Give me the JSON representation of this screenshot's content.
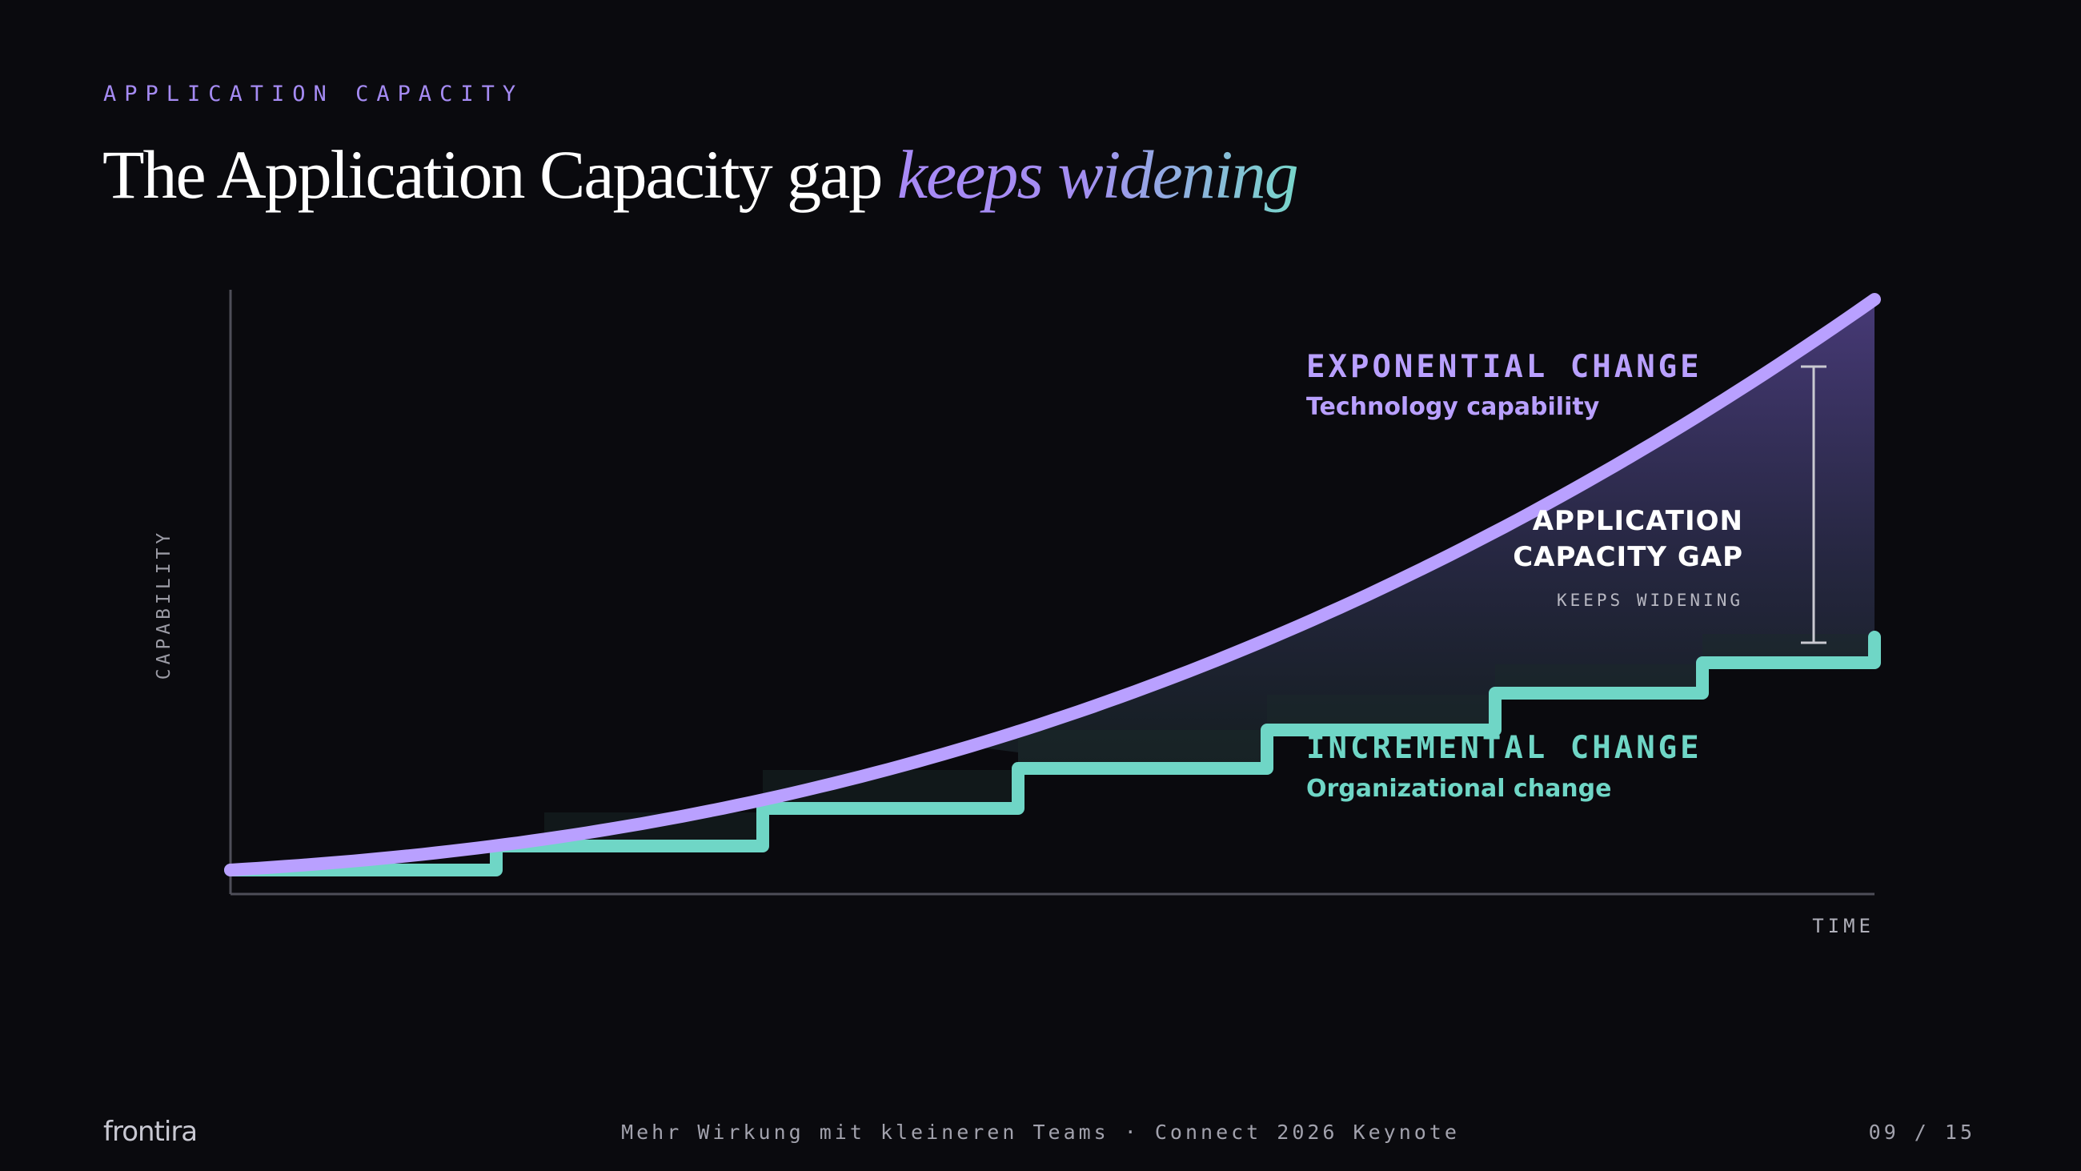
{
  "eyebrow": "APPLICATION CAPACITY",
  "title": {
    "text": "The Application Capacity gap",
    "accent": "keeps widening"
  },
  "chart_data": {
    "type": "line",
    "xlabel": "TIME",
    "ylabel": "CAPABILITY",
    "series": [
      {
        "name": "EXPONENTIAL CHANGE",
        "subtitle": "Technology capability",
        "color": "#b9a0ff",
        "shape": "exponential"
      },
      {
        "name": "INCREMENTAL CHANGE",
        "subtitle": "Organizational change",
        "color": "#6fd6c6",
        "shape": "step"
      }
    ],
    "gap": {
      "line1": "APPLICATION",
      "line2": "CAPACITY GAP",
      "note": "KEEPS WIDENING"
    },
    "colors": {
      "exponential": "#b9a0ff",
      "incremental": "#6fd6c6",
      "gap_top": "#4a3c7c",
      "axis": "#4e4e58"
    }
  },
  "footer": {
    "logo": "frontira",
    "center": "Mehr Wirkung mit kleineren Teams · Connect 2026 Keynote",
    "page": "09 / 15"
  }
}
